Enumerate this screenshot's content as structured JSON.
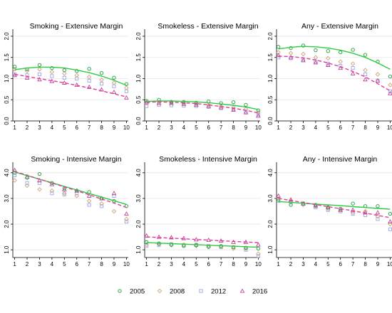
{
  "colors": {
    "2005": "#1a9d3a",
    "2008": "#cfa37a",
    "2012": "#9aa8e6",
    "2016": "#c0479a",
    "fit_2005": "#2ecc40",
    "fit_2016": "#e6399b"
  },
  "legend": [
    {
      "label": "2005",
      "marker": "circle",
      "color": "#1a9d3a"
    },
    {
      "label": "2008",
      "marker": "diamond",
      "color": "#cfa37a"
    },
    {
      "label": "2012",
      "marker": "square",
      "color": "#9aa8e6"
    },
    {
      "label": "2016",
      "marker": "triangle",
      "color": "#c0479a"
    }
  ],
  "chart_data": [
    {
      "type": "scatter",
      "title": "Smoking - Extensive Margin",
      "x": [
        1,
        2,
        3,
        4,
        5,
        6,
        7,
        8,
        9,
        10
      ],
      "ylim": [
        0,
        2.1
      ],
      "yticks": [
        "0.0",
        "0.5",
        "1.0",
        "1.5",
        "2.0"
      ],
      "ytick_values": [
        0,
        0.5,
        1.0,
        1.5,
        2.0
      ],
      "series": [
        {
          "name": "2005",
          "values": [
            1.28,
            1.22,
            1.32,
            1.25,
            1.2,
            1.18,
            1.23,
            1.13,
            1.02,
            0.87
          ]
        },
        {
          "name": "2008",
          "values": [
            1.22,
            1.18,
            1.22,
            1.16,
            1.12,
            1.08,
            1.04,
            0.97,
            0.9,
            0.78
          ]
        },
        {
          "name": "2012",
          "values": [
            1.1,
            1.08,
            1.1,
            1.06,
            1.02,
            1.0,
            0.95,
            0.88,
            0.82,
            0.7
          ]
        },
        {
          "name": "2016",
          "values": [
            1.08,
            1.02,
            0.98,
            0.94,
            0.9,
            0.85,
            0.8,
            0.74,
            0.68,
            0.55
          ]
        }
      ],
      "fits": [
        {
          "name": "2005",
          "style": "solid",
          "values": [
            1.21,
            1.25,
            1.27,
            1.27,
            1.25,
            1.2,
            1.14,
            1.06,
            0.96,
            0.84
          ]
        },
        {
          "name": "2016",
          "style": "dashed",
          "values": [
            1.1,
            1.05,
            1.0,
            0.95,
            0.9,
            0.84,
            0.78,
            0.71,
            0.64,
            0.57
          ]
        }
      ]
    },
    {
      "type": "scatter",
      "title": "Smokeless - Extensive Margin",
      "x": [
        1,
        2,
        3,
        4,
        5,
        6,
        7,
        8,
        9,
        10
      ],
      "ylim": [
        0,
        2.1
      ],
      "yticks": [
        "0.0",
        "0.5",
        "1.0",
        "1.5",
        "2.0"
      ],
      "ytick_values": [
        0,
        0.5,
        1.0,
        1.5,
        2.0
      ],
      "series": [
        {
          "name": "2005",
          "values": [
            0.47,
            0.5,
            0.45,
            0.45,
            0.43,
            0.46,
            0.42,
            0.44,
            0.38,
            0.25
          ]
        },
        {
          "name": "2008",
          "values": [
            0.42,
            0.44,
            0.43,
            0.41,
            0.4,
            0.38,
            0.35,
            0.32,
            0.28,
            0.2
          ]
        },
        {
          "name": "2012",
          "values": [
            0.35,
            0.38,
            0.37,
            0.36,
            0.35,
            0.33,
            0.3,
            0.28,
            0.22,
            0.15
          ]
        },
        {
          "name": "2016",
          "values": [
            0.44,
            0.42,
            0.42,
            0.4,
            0.38,
            0.35,
            0.32,
            0.26,
            0.2,
            0.12
          ]
        }
      ],
      "fits": [
        {
          "name": "2005",
          "style": "solid",
          "values": [
            0.46,
            0.47,
            0.47,
            0.46,
            0.45,
            0.43,
            0.4,
            0.37,
            0.33,
            0.27
          ]
        },
        {
          "name": "2016",
          "style": "dashed",
          "values": [
            0.44,
            0.45,
            0.44,
            0.43,
            0.41,
            0.38,
            0.34,
            0.3,
            0.25,
            0.19
          ]
        }
      ]
    },
    {
      "type": "scatter",
      "title": "Any - Extensive Margin",
      "x": [
        1,
        2,
        3,
        4,
        5,
        6,
        7,
        8,
        9,
        10
      ],
      "ylim": [
        0,
        2.1
      ],
      "yticks": [
        "0.0",
        "0.5",
        "1.0",
        "1.5",
        "2.0"
      ],
      "ytick_values": [
        0,
        0.5,
        1.0,
        1.5,
        2.0
      ],
      "series": [
        {
          "name": "2005",
          "values": [
            1.75,
            1.72,
            1.78,
            1.67,
            1.65,
            1.62,
            1.68,
            1.56,
            1.4,
            1.05
          ]
        },
        {
          "name": "2008",
          "values": [
            1.62,
            1.6,
            1.58,
            1.5,
            1.48,
            1.4,
            1.35,
            1.2,
            1.1,
            0.85
          ]
        },
        {
          "name": "2012",
          "values": [
            1.5,
            1.48,
            1.45,
            1.4,
            1.35,
            1.3,
            1.25,
            1.1,
            0.95,
            0.7
          ]
        },
        {
          "name": "2016",
          "values": [
            1.55,
            1.5,
            1.43,
            1.38,
            1.32,
            1.25,
            1.12,
            0.98,
            0.95,
            0.65
          ]
        }
      ],
      "fits": [
        {
          "name": "2005",
          "style": "solid",
          "values": [
            1.7,
            1.74,
            1.76,
            1.75,
            1.72,
            1.67,
            1.6,
            1.5,
            1.37,
            1.22
          ]
        },
        {
          "name": "2016",
          "style": "dashed",
          "values": [
            1.53,
            1.52,
            1.49,
            1.44,
            1.37,
            1.28,
            1.17,
            1.04,
            0.88,
            0.71
          ]
        }
      ]
    },
    {
      "type": "scatter",
      "title": "Smoking - Intensive Margin",
      "x": [
        1,
        2,
        3,
        4,
        5,
        6,
        7,
        8,
        9,
        10
      ],
      "ylim": [
        0.7,
        4.3
      ],
      "yticks": [
        "1.0",
        "2.0",
        "3.0",
        "4.0"
      ],
      "ytick_values": [
        1.0,
        2.0,
        3.0,
        4.0
      ],
      "series": [
        {
          "name": "2005",
          "values": [
            4.0,
            3.8,
            3.95,
            3.6,
            3.4,
            3.3,
            3.25,
            3.0,
            2.9,
            2.7
          ]
        },
        {
          "name": "2008",
          "values": [
            3.7,
            3.5,
            3.35,
            3.3,
            3.2,
            3.1,
            2.9,
            2.8,
            2.5,
            2.2
          ]
        },
        {
          "name": "2012",
          "values": [
            3.9,
            3.6,
            3.6,
            3.2,
            3.15,
            3.2,
            2.75,
            2.7,
            3.1,
            2.1
          ]
        },
        {
          "name": "2016",
          "values": [
            4.1,
            3.85,
            3.7,
            3.55,
            3.35,
            3.3,
            3.1,
            3.0,
            3.2,
            2.4
          ]
        }
      ],
      "fits": [
        {
          "name": "2005",
          "style": "solid",
          "values": [
            4.03,
            3.89,
            3.75,
            3.61,
            3.47,
            3.33,
            3.19,
            3.05,
            2.91,
            2.77
          ]
        },
        {
          "name": "2016",
          "style": "dashed",
          "values": [
            4.05,
            3.9,
            3.75,
            3.6,
            3.45,
            3.3,
            3.14,
            2.98,
            2.82,
            2.65
          ]
        }
      ]
    },
    {
      "type": "scatter",
      "title": "Smokeless - Intensive Margin",
      "x": [
        1,
        2,
        3,
        4,
        5,
        6,
        7,
        8,
        9,
        10
      ],
      "ylim": [
        0.7,
        4.3
      ],
      "yticks": [
        "1.0",
        "2.0",
        "3.0",
        "4.0"
      ],
      "ytick_values": [
        1.0,
        2.0,
        3.0,
        4.0
      ],
      "series": [
        {
          "name": "2005",
          "values": [
            1.3,
            1.25,
            1.2,
            1.15,
            1.18,
            1.12,
            1.15,
            1.1,
            1.08,
            1.05
          ]
        },
        {
          "name": "2008",
          "values": [
            1.2,
            1.22,
            1.18,
            1.2,
            1.15,
            1.1,
            1.12,
            1.05,
            1.05,
            0.85
          ]
        },
        {
          "name": "2012",
          "values": [
            1.15,
            1.18,
            1.22,
            1.18,
            1.2,
            1.15,
            1.1,
            1.1,
            1.0,
            0.75
          ]
        },
        {
          "name": "2016",
          "values": [
            1.55,
            1.5,
            1.48,
            1.45,
            1.4,
            1.38,
            1.35,
            1.3,
            1.3,
            1.2
          ]
        }
      ],
      "fits": [
        {
          "name": "2005",
          "style": "solid",
          "values": [
            1.28,
            1.26,
            1.24,
            1.22,
            1.2,
            1.18,
            1.16,
            1.14,
            1.12,
            1.1
          ]
        },
        {
          "name": "2016",
          "style": "dashed",
          "values": [
            1.5,
            1.48,
            1.45,
            1.43,
            1.4,
            1.38,
            1.35,
            1.33,
            1.3,
            1.28
          ]
        }
      ]
    },
    {
      "type": "scatter",
      "title": "Any - Intensive Margin",
      "x": [
        1,
        2,
        3,
        4,
        5,
        6,
        7,
        8,
        9,
        10
      ],
      "ylim": [
        0.7,
        4.3
      ],
      "yticks": [
        "1.0",
        "2.0",
        "3.0",
        "4.0"
      ],
      "ytick_values": [
        1.0,
        2.0,
        3.0,
        4.0
      ],
      "series": [
        {
          "name": "2005",
          "values": [
            2.95,
            2.75,
            2.8,
            2.75,
            2.65,
            2.6,
            2.8,
            2.7,
            2.7,
            2.4
          ]
        },
        {
          "name": "2008",
          "values": [
            3.0,
            2.9,
            2.75,
            2.7,
            2.6,
            2.55,
            2.45,
            2.5,
            2.3,
            2.0
          ]
        },
        {
          "name": "2012",
          "values": [
            2.9,
            2.85,
            2.8,
            2.65,
            2.55,
            2.5,
            2.4,
            2.35,
            2.2,
            1.8
          ]
        },
        {
          "name": "2016",
          "values": [
            3.1,
            2.95,
            2.8,
            2.72,
            2.65,
            2.55,
            2.55,
            2.45,
            2.45,
            2.1
          ]
        }
      ],
      "fits": [
        {
          "name": "2005",
          "style": "solid",
          "values": [
            2.88,
            2.85,
            2.81,
            2.78,
            2.75,
            2.72,
            2.68,
            2.65,
            2.61,
            2.58
          ]
        },
        {
          "name": "2016",
          "style": "dashed",
          "values": [
            3.0,
            2.92,
            2.84,
            2.76,
            2.68,
            2.6,
            2.52,
            2.43,
            2.34,
            2.25
          ]
        }
      ]
    }
  ]
}
